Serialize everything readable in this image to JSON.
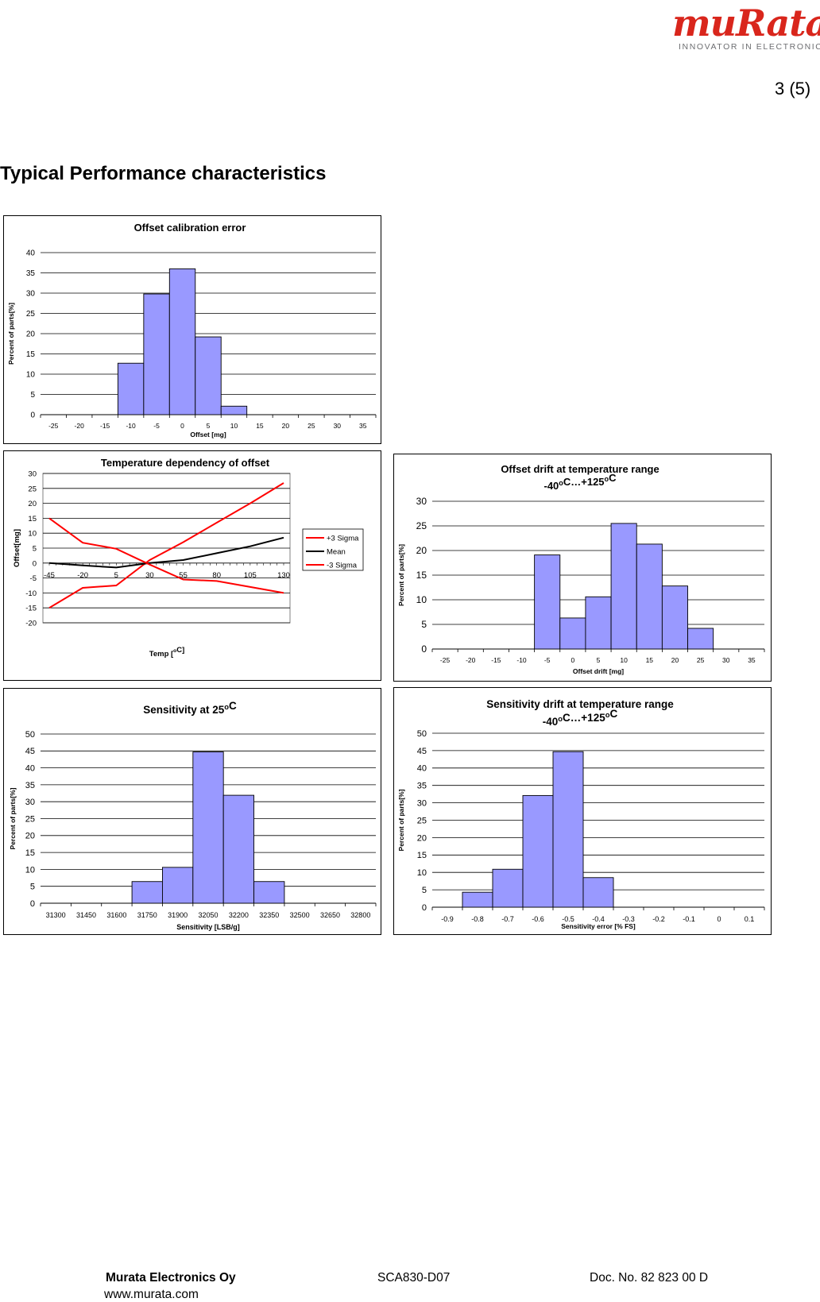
{
  "header": {
    "brand_logo_text": "muRata",
    "brand_tagline": "INNOVATOR IN ELECTRONICS",
    "page_number": "3 (5)"
  },
  "heading": "Typical Performance characteristics",
  "colors": {
    "bar_fill": "#9999ff",
    "line_red": "#ff0000",
    "line_black": "#000000"
  },
  "chart_data": [
    {
      "id": "c1",
      "type": "bar",
      "title": "Offset calibration error",
      "xlabel": "Offset [mg]",
      "ylabel": "Percent of parts[%]",
      "categories": [
        "-25",
        "-20",
        "-15",
        "-10",
        "-5",
        "0",
        "5",
        "10",
        "15",
        "20",
        "25",
        "30",
        "35"
      ],
      "values": [
        0,
        0,
        0,
        12.7,
        29.8,
        36,
        19.2,
        2.1,
        0,
        0,
        0,
        0,
        0
      ],
      "ylim": [
        0,
        40
      ],
      "yticks": [
        0,
        5,
        10,
        15,
        20,
        25,
        30,
        35,
        40
      ]
    },
    {
      "id": "c2",
      "type": "line",
      "title": "Temperature dependency of offset",
      "xlabel": "Temp [°C]",
      "ylabel": "Offset[mg]",
      "x": [
        -45,
        -20,
        5,
        30,
        55,
        80,
        105,
        130
      ],
      "ylim": [
        -20,
        30
      ],
      "yticks": [
        -20,
        -15,
        -10,
        -5,
        0,
        5,
        10,
        15,
        20,
        25,
        30
      ],
      "series": [
        {
          "name": "+3 Sigma",
          "color": "#ff0000",
          "values": [
            -15,
            -8.3,
            -7.5,
            1,
            7,
            13.5,
            20,
            26.8
          ]
        },
        {
          "name": "Mean",
          "color": "#000000",
          "values": [
            0,
            -0.8,
            -1.5,
            0,
            1,
            3.3,
            5.6,
            8.5
          ]
        },
        {
          "name": "-3 Sigma",
          "color": "#ff0000",
          "values": [
            15,
            6.8,
            4.8,
            -0.5,
            -5.5,
            -6,
            -8,
            -10
          ]
        }
      ]
    },
    {
      "id": "c3",
      "type": "bar",
      "title": "Offset drift at temperature range",
      "title2": "-40°C…+125°C",
      "xlabel": "Offset drift [mg]",
      "ylabel": "Percent of parts[%]",
      "categories": [
        "-25",
        "-20",
        "-15",
        "-10",
        "-5",
        "0",
        "5",
        "10",
        "15",
        "20",
        "25",
        "30",
        "35"
      ],
      "values": [
        0,
        0,
        0,
        0,
        19.1,
        6.3,
        10.6,
        25.5,
        21.3,
        12.8,
        4.2,
        0,
        0
      ],
      "ylim": [
        0,
        30
      ],
      "yticks": [
        0,
        5,
        10,
        15,
        20,
        25,
        30
      ]
    },
    {
      "id": "c4",
      "type": "bar",
      "title": "Sensitivity at 25°C",
      "xlabel": "Sensitivity [LSB/g]",
      "ylabel": "Percent of parts[%]",
      "categories": [
        "31300",
        "31450",
        "31600",
        "31750",
        "31900",
        "32050",
        "32200",
        "32350",
        "32500",
        "32650",
        "32800"
      ],
      "values": [
        0,
        0,
        0,
        6.4,
        10.6,
        44.7,
        31.9,
        6.4,
        0,
        0,
        0
      ],
      "ylim": [
        0,
        50
      ],
      "yticks": [
        0,
        5,
        10,
        15,
        20,
        25,
        30,
        35,
        40,
        45,
        50
      ]
    },
    {
      "id": "c5",
      "type": "bar",
      "title": "Sensitivity drift at temperature range",
      "title2": "-40°C…+125°C",
      "xlabel": "Sensitivity error [% FS]",
      "ylabel": "Percent of parts[%]",
      "categories": [
        "-0.9",
        "-0.8",
        "-0.7",
        "-0.6",
        "-0.5",
        "-0.4",
        "-0.3",
        "-0.2",
        "-0.1",
        "0",
        "0.1"
      ],
      "values": [
        0,
        4.3,
        10.9,
        32.1,
        44.7,
        8.5,
        0,
        0,
        0,
        0,
        0
      ],
      "ylim": [
        0,
        50
      ],
      "yticks": [
        0,
        5,
        10,
        15,
        20,
        25,
        30,
        35,
        40,
        45,
        50
      ]
    }
  ],
  "footer": {
    "company": "Murata Electronics Oy",
    "product": "SCA830-D07",
    "doc_no": "Doc. No. 82 823 00 D",
    "website": "www.murata.com"
  }
}
